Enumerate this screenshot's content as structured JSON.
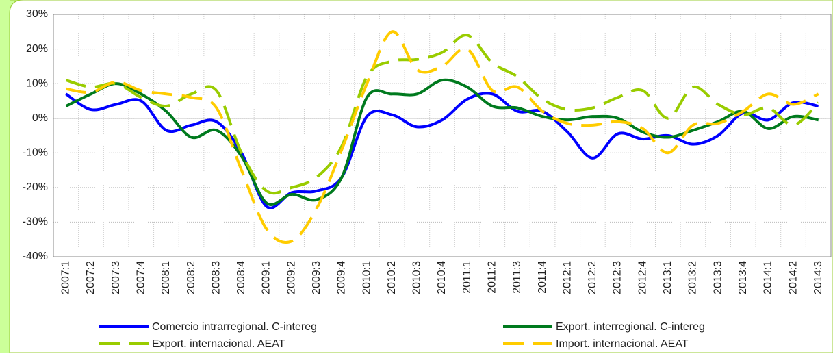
{
  "chart_data": {
    "type": "line",
    "categories": [
      "2007:1",
      "2007:2",
      "2007:3",
      "2007:4",
      "2008:1",
      "2008:2",
      "2008:3",
      "2008:4",
      "2009:1",
      "2009:2",
      "2009:3",
      "2009:4",
      "2010:1",
      "2010:2",
      "2010:3",
      "2010:4",
      "2011:1",
      "2011:2",
      "2011:3",
      "2011:4",
      "2012:1",
      "2012:2",
      "2012:3",
      "2012:4",
      "2013:1",
      "2013:2",
      "2013:3",
      "2013:4",
      "2014:1",
      "2014:2",
      "2014:3"
    ],
    "series": [
      {
        "name": "Comercio intrarregional. C-intereg",
        "color": "#0000ff",
        "dashed": false,
        "values": [
          7,
          2.5,
          4,
          5,
          -3.5,
          -2,
          -1,
          -10,
          -25.5,
          -21.5,
          -21,
          -17,
          0.5,
          1,
          -2.5,
          -0.5,
          5.5,
          7,
          2,
          2,
          -4,
          -11.5,
          -4.5,
          -6,
          -5,
          -7.5,
          -5,
          1.5,
          -0.5,
          4.5,
          3.5
        ]
      },
      {
        "name": "Export. interregional. C-intereg",
        "color": "#007a1e",
        "dashed": false,
        "values": [
          3.5,
          7,
          10,
          7,
          2,
          -5.5,
          -3.5,
          -11,
          -24.5,
          -22,
          -23.5,
          -17,
          6,
          7,
          7,
          11,
          9,
          3.5,
          3,
          0.5,
          -0.5,
          0.5,
          0,
          -4,
          -5.5,
          -3.5,
          -1,
          2,
          -3,
          0.5,
          -0.5
        ]
      },
      {
        "name": "Export. internacional. AEAT",
        "color": "#99cc00",
        "dashed": true,
        "values": [
          11,
          9,
          10,
          6,
          3.5,
          7,
          8,
          -10,
          -21,
          -20,
          -17,
          -8,
          12,
          16.5,
          17,
          19,
          24,
          16,
          12,
          5.5,
          2.5,
          3,
          6,
          8,
          0,
          9,
          4,
          1,
          3,
          -2,
          4.5
        ]
      },
      {
        "name": "Import. internacional. AEAT",
        "color": "#ffcc00",
        "dashed": true,
        "values": [
          8.5,
          7.5,
          10.5,
          8,
          7,
          6,
          3,
          -15,
          -32,
          -35.5,
          -26,
          -9,
          10,
          25,
          14,
          15,
          20,
          8,
          9,
          2,
          -1.5,
          -2,
          -1,
          -3,
          -10,
          -2,
          -1.5,
          2,
          7,
          4,
          7
        ]
      }
    ],
    "ylim": [
      -40,
      30
    ],
    "yticks": [
      {
        "value": -40,
        "label": "-40%"
      },
      {
        "value": -30,
        "label": "-30%"
      },
      {
        "value": -20,
        "label": "-20%"
      },
      {
        "value": -10,
        "label": "-10%"
      },
      {
        "value": 0,
        "label": "0%"
      },
      {
        "value": 10,
        "label": "10%"
      },
      {
        "value": 20,
        "label": "20%"
      },
      {
        "value": 30,
        "label": "30%"
      }
    ],
    "grid": true
  }
}
